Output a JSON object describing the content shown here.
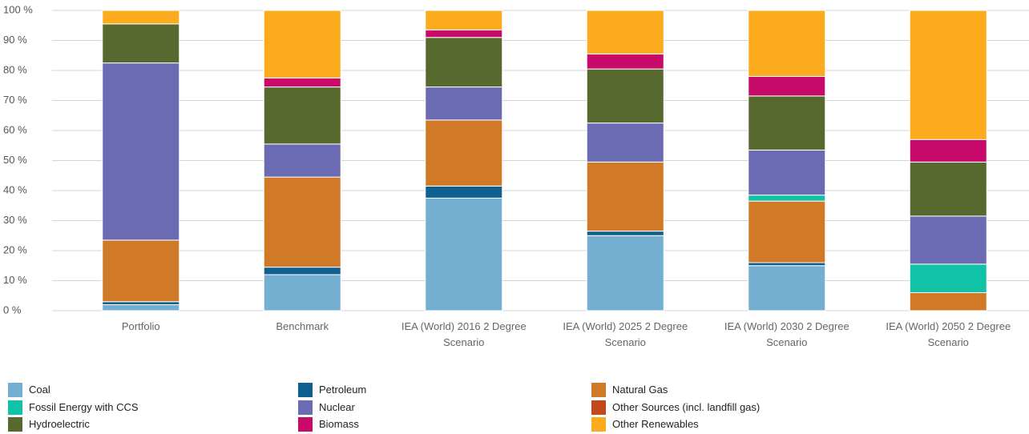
{
  "chart_data": {
    "type": "stacked_bar",
    "categories": [
      "Portfolio",
      "Benchmark",
      "IEA (World) 2016 2 Degree Scenario",
      "IEA (World) 2025 2 Degree Scenario",
      "IEA (World) 2030 2 Degree Scenario",
      "IEA (World) 2050 2 Degree Scenario"
    ],
    "series": [
      {
        "name": "Coal",
        "color": "#74aed0",
        "values": [
          2,
          12,
          37.5,
          25,
          15,
          0
        ]
      },
      {
        "name": "Petroleum",
        "color": "#0f5f8f",
        "values": [
          1,
          2.5,
          4,
          1.5,
          1,
          0
        ]
      },
      {
        "name": "Natural Gas",
        "color": "#d07a27",
        "values": [
          20.5,
          30,
          22,
          23,
          20.5,
          6
        ]
      },
      {
        "name": "Fossil Energy with CCS",
        "color": "#11c3a6",
        "values": [
          0,
          0,
          0,
          0,
          2,
          9.5
        ]
      },
      {
        "name": "Nuclear",
        "color": "#6b6bb3",
        "values": [
          59,
          11,
          11,
          13,
          15,
          16
        ]
      },
      {
        "name": "Other Sources (incl. landfill gas)",
        "color": "#c2481d",
        "values": [
          0,
          0,
          0,
          0,
          0,
          0
        ]
      },
      {
        "name": "Hydroelectric",
        "color": "#58692f",
        "values": [
          13,
          19,
          16.5,
          18,
          18,
          18
        ]
      },
      {
        "name": "Biomass",
        "color": "#c80a6a",
        "values": [
          0,
          3,
          2.5,
          5,
          6.5,
          7.5
        ]
      },
      {
        "name": "Other Renewables",
        "color": "#fbab1c",
        "values": [
          4.5,
          22.5,
          6.5,
          14.5,
          22,
          43
        ]
      }
    ],
    "ylim": [
      0,
      100
    ],
    "yticks": [
      {
        "value": 0,
        "label": "0 %"
      },
      {
        "value": 10,
        "label": "10 %"
      },
      {
        "value": 20,
        "label": "20 %"
      },
      {
        "value": 30,
        "label": "30 %"
      },
      {
        "value": 40,
        "label": "40 %"
      },
      {
        "value": 50,
        "label": "50 %"
      },
      {
        "value": 60,
        "label": "60 %"
      },
      {
        "value": 70,
        "label": "70 %"
      },
      {
        "value": 80,
        "label": "80 %"
      },
      {
        "value": 90,
        "label": "90 %"
      },
      {
        "value": 100,
        "label": "100 %"
      }
    ],
    "grid": true,
    "legend": "bottom"
  }
}
